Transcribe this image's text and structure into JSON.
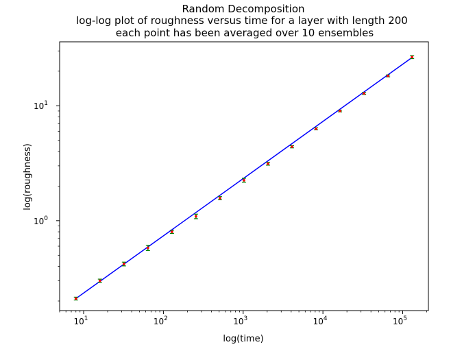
{
  "chart_data": {
    "type": "scatter",
    "title": "Random Decomposition",
    "subtitle_lines": [
      "log-log plot of roughness versus time for a layer with length 200",
      "each point has been averaged over 10 ensembles"
    ],
    "xlabel": "log(time)",
    "ylabel": "log(roughness)",
    "xscale": "log",
    "yscale": "log",
    "xlim": [
      5,
      210000
    ],
    "ylim": [
      0.165,
      36
    ],
    "grid": false,
    "x_ticks": [
      {
        "base": "10",
        "exp": "1",
        "value": 10
      },
      {
        "base": "10",
        "exp": "2",
        "value": 100
      },
      {
        "base": "10",
        "exp": "3",
        "value": 1000
      },
      {
        "base": "10",
        "exp": "4",
        "value": 10000
      },
      {
        "base": "10",
        "exp": "5",
        "value": 100000
      }
    ],
    "y_ticks": [
      {
        "base": "10",
        "exp": "0",
        "value": 1
      },
      {
        "base": "10",
        "exp": "1",
        "value": 10
      }
    ],
    "series": [
      {
        "kind": "errorbar",
        "marker_color": "#ff0000",
        "errorbar_color": "#008000",
        "points": [
          {
            "x": 8,
            "y": 0.21,
            "err": 0.006
          },
          {
            "x": 16,
            "y": 0.3,
            "err": 0.01
          },
          {
            "x": 32,
            "y": 0.42,
            "err": 0.016
          },
          {
            "x": 64,
            "y": 0.58,
            "err": 0.03
          },
          {
            "x": 128,
            "y": 0.8,
            "err": 0.025
          },
          {
            "x": 256,
            "y": 1.09,
            "err": 0.05
          },
          {
            "x": 512,
            "y": 1.57,
            "err": 0.05
          },
          {
            "x": 1024,
            "y": 2.25,
            "err": 0.09
          },
          {
            "x": 2048,
            "y": 3.13,
            "err": 0.09
          },
          {
            "x": 4096,
            "y": 4.4,
            "err": 0.1
          },
          {
            "x": 8192,
            "y": 6.3,
            "err": 0.13
          },
          {
            "x": 16384,
            "y": 9.0,
            "err": 0.15
          },
          {
            "x": 32768,
            "y": 12.8,
            "err": 0.25
          },
          {
            "x": 65536,
            "y": 18.2,
            "err": 0.35
          },
          {
            "x": 131072,
            "y": 26.5,
            "err": 0.8
          }
        ]
      },
      {
        "kind": "fit-line",
        "color": "#0000ff",
        "x": [
          8,
          131072
        ],
        "y": [
          0.21,
          26.3
        ]
      }
    ]
  }
}
